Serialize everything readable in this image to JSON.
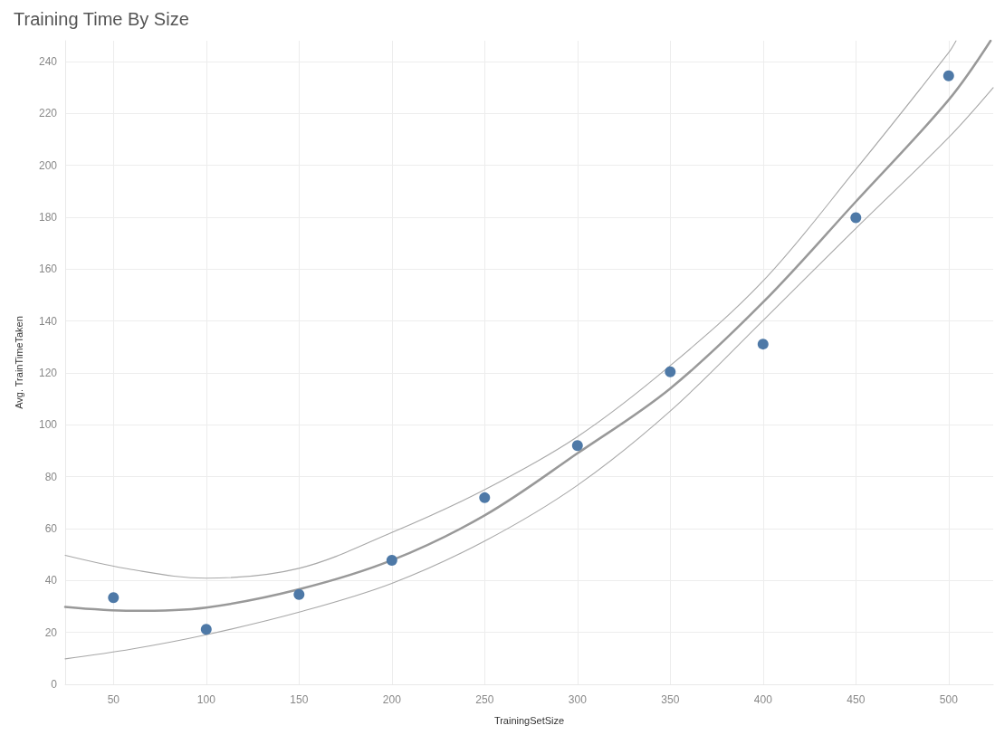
{
  "chart_data": {
    "type": "scatter",
    "title": "Training Time By Size",
    "xlabel": "TrainingSetSize",
    "ylabel": "Avg. TrainTimeTaken",
    "x": [
      50,
      100,
      150,
      200,
      250,
      300,
      350,
      400,
      450,
      500
    ],
    "xlim": [
      24,
      524
    ],
    "xticks": [
      50,
      100,
      150,
      200,
      250,
      300,
      350,
      400,
      450,
      500
    ],
    "ylim": [
      0,
      248
    ],
    "yticks": [
      0,
      20,
      40,
      60,
      80,
      100,
      120,
      140,
      160,
      180,
      200,
      220,
      240
    ],
    "grid": true,
    "marker": "circle",
    "series": [
      {
        "color": "#4e79a7",
        "values": [
          33.4,
          21.2,
          34.6,
          47.8,
          71.9,
          92.0,
          120.4,
          131.1,
          179.8,
          234.5
        ]
      },
      {
        "type": "line",
        "marker": "none",
        "color": "#999999",
        "x": [
          24,
          60,
          100,
          150,
          200,
          250,
          300,
          350,
          400,
          450,
          500,
          522.6
        ],
        "values": [
          29.8,
          28.3,
          29.6,
          36.6,
          47.8,
          65.1,
          89.0,
          114.0,
          147.2,
          186.0,
          225.2,
          248
        ]
      },
      {
        "type": "line",
        "marker": "none",
        "color": "#a8a8a8",
        "x": [
          24,
          60,
          100,
          150,
          200,
          250,
          300,
          350,
          400,
          450,
          500,
          504
        ],
        "values": [
          49.7,
          44.2,
          40.9,
          44.7,
          58.5,
          75.0,
          95.4,
          122.8,
          155.4,
          198.4,
          243.4,
          248
        ]
      },
      {
        "type": "line",
        "marker": "none",
        "color": "#a8a8a8",
        "x": [
          24,
          60,
          100,
          150,
          200,
          250,
          300,
          350,
          400,
          450,
          500,
          524
        ],
        "values": [
          9.8,
          13.6,
          19.1,
          27.8,
          38.9,
          55.2,
          76.7,
          105.3,
          140.2,
          175.7,
          210.7,
          229.9
        ]
      }
    ]
  }
}
